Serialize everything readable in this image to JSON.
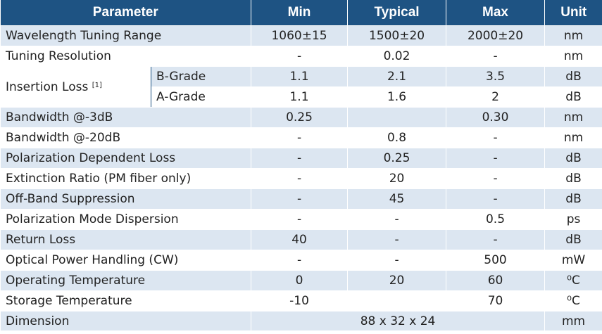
{
  "header": {
    "parameter": "Parameter",
    "min": "Min",
    "typical": "Typical",
    "max": "Max",
    "unit": "Unit"
  },
  "rows": [
    {
      "param": "Wavelength Tuning Range",
      "min": "1060±15",
      "typ": "1500±20",
      "max": "2000±20",
      "unit": "nm"
    },
    {
      "param": "Tuning Resolution",
      "min": "-",
      "typ": "0.02",
      "max": "-",
      "unit": "nm"
    },
    {
      "param": "Insertion Loss",
      "note": "[1]",
      "sub": "B-Grade",
      "min": "1.1",
      "typ": "2.1",
      "max": "3.5",
      "unit": "dB"
    },
    {
      "sub": "A-Grade",
      "min": "1.1",
      "typ": "1.6",
      "max": "2",
      "unit": "dB"
    },
    {
      "param": "Bandwidth @-3dB",
      "min": "0.25",
      "typ": "",
      "max": "0.30",
      "unit": "nm"
    },
    {
      "param": "Bandwidth @-20dB",
      "min": "-",
      "typ": "0.8",
      "max": "-",
      "unit": "nm"
    },
    {
      "param": "Polarization Dependent Loss",
      "min": "-",
      "typ": "0.25",
      "max": "-",
      "unit": "dB"
    },
    {
      "param": "Extinction Ratio (PM fiber only)",
      "min": "-",
      "typ": "20",
      "max": "-",
      "unit": "dB"
    },
    {
      "param": "Off-Band Suppression",
      "min": "-",
      "typ": "45",
      "max": "-",
      "unit": "dB"
    },
    {
      "param": "Polarization Mode Dispersion",
      "min": "-",
      "typ": "-",
      "max": "0.5",
      "unit": "ps"
    },
    {
      "param": "Return Loss",
      "min": "40",
      "typ": "-",
      "max": "-",
      "unit": "dB"
    },
    {
      "param": "Optical Power Handling (CW)",
      "min": "-",
      "typ": "-",
      "max": "500",
      "unit": "mW"
    },
    {
      "param": "Operating Temperature",
      "min": "0",
      "typ": "20",
      "max": "60",
      "unit": "⁰C"
    },
    {
      "param": "Storage Temperature",
      "min": "-10",
      "typ": "",
      "max": "70",
      "unit": "⁰C"
    },
    {
      "param": "Dimension",
      "value": "88 x 32 x 24",
      "unit": "mm"
    }
  ]
}
